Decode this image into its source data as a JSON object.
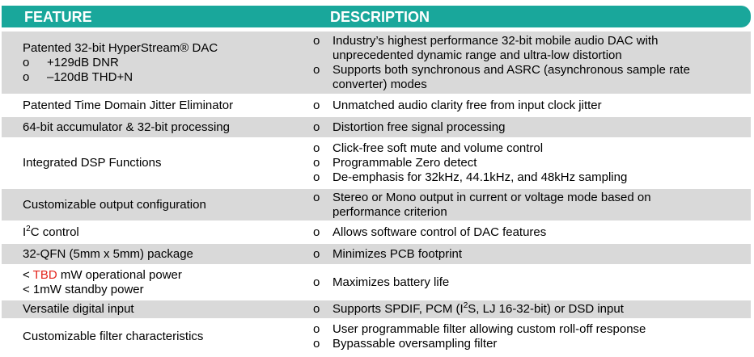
{
  "header": {
    "feature": "FEATURE",
    "description": "DESCRIPTION"
  },
  "rows": [
    {
      "feature": "Patented 32-bit HyperStream® DAC",
      "feature_bullets": [
        "+129dB DNR",
        "–120dB THD+N"
      ],
      "description": [
        "Industry’s highest performance 32-bit mobile audio DAC with unprecedented dynamic range and ultra-low distortion",
        "Supports both synchronous and ASRC (asynchronous sample rate converter) modes"
      ]
    },
    {
      "feature": "Patented Time Domain Jitter Eliminator",
      "description": [
        "Unmatched audio clarity free from input clock jitter"
      ]
    },
    {
      "feature": "64-bit accumulator & 32-bit processing",
      "description": [
        "Distortion free signal processing"
      ]
    },
    {
      "feature": "Integrated DSP Functions",
      "description": [
        "Click-free soft mute and volume control",
        "Programmable Zero detect",
        "De-emphasis for 32kHz, 44.1kHz, and 48kHz sampling"
      ]
    },
    {
      "feature": "Customizable output configuration",
      "description": [
        "Stereo or Mono output in current or voltage mode based on performance criterion"
      ]
    },
    {
      "feature": [
        "I",
        "2",
        "C control"
      ],
      "description": [
        "Allows software control of DAC features"
      ]
    },
    {
      "feature": "32-QFN (5mm x 5mm) package",
      "description": [
        "Minimizes PCB footprint"
      ]
    },
    {
      "feature": [
        [
          "< ",
          "TBD",
          " mW operational power"
        ],
        "< 1mW standby power"
      ],
      "description": [
        "Maximizes battery life"
      ]
    },
    {
      "feature": "Versatile digital input",
      "description": [
        [
          "Supports SPDIF, PCM (I",
          "2",
          "S, LJ 16-32-bit) or DSD input"
        ]
      ]
    },
    {
      "feature": "Customizable filter characteristics",
      "description": [
        "User programmable filter allowing custom roll-off response",
        "Bypassable oversampling filter"
      ]
    }
  ]
}
